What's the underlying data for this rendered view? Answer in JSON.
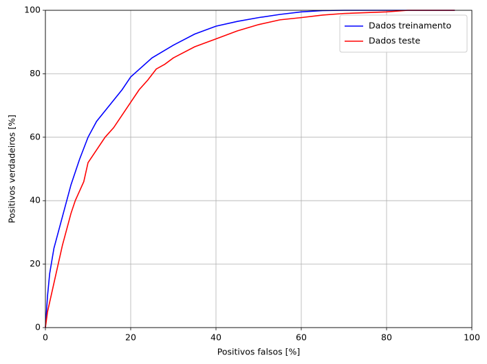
{
  "chart_data": {
    "type": "line",
    "x_label": "Positivos falsos [%]",
    "y_label": "Positivos verdadeiros [%]",
    "xlim": [
      0,
      100
    ],
    "ylim": [
      0,
      100
    ],
    "xticks": [
      0,
      20,
      40,
      60,
      80,
      100
    ],
    "yticks": [
      0,
      20,
      40,
      60,
      80,
      100
    ],
    "grid": true,
    "legend": "upper right",
    "series": [
      {
        "name": "Dados treinamento",
        "color": "#0000ff",
        "x": [
          0,
          0.5,
          1,
          2,
          3,
          4,
          5,
          6,
          7,
          8,
          10,
          12,
          15,
          18,
          20,
          25,
          30,
          35,
          40,
          45,
          50,
          55,
          60,
          65,
          70,
          96
        ],
        "values": [
          0,
          10,
          17,
          25,
          30,
          35,
          40,
          45,
          49,
          53,
          60,
          65,
          70,
          75,
          79,
          85,
          89,
          92.5,
          95,
          96.5,
          97.7,
          98.7,
          99.5,
          99.9,
          100,
          100
        ]
      },
      {
        "name": "Dados teste",
        "color": "#ff0000",
        "x": [
          0,
          0.5,
          1,
          2,
          3,
          4,
          5,
          6,
          7,
          8,
          9,
          10,
          12,
          14,
          16,
          18,
          20,
          22,
          24,
          26,
          28,
          30,
          35,
          40,
          45,
          50,
          55,
          60,
          65,
          70,
          80,
          85,
          96
        ],
        "values": [
          0,
          5,
          8,
          14,
          20,
          26,
          31,
          36,
          40,
          43,
          46,
          52,
          56,
          60,
          63,
          67,
          71,
          75,
          78,
          81.5,
          83,
          85,
          88.5,
          91,
          93.5,
          95.5,
          97,
          97.7,
          98.5,
          99,
          99.5,
          100,
          100
        ]
      }
    ]
  }
}
